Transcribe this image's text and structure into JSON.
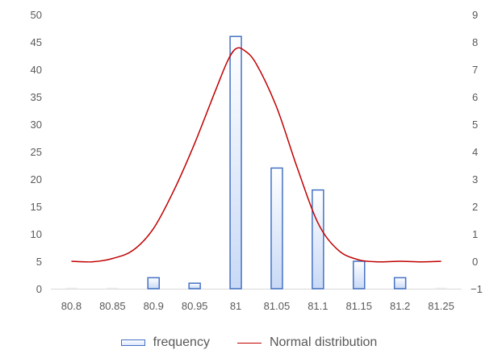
{
  "chart_data": {
    "type": "bar",
    "categories": [
      "80.8",
      "80.85",
      "80.9",
      "80.95",
      "81",
      "81.05",
      "81.1",
      "81.15",
      "81.2",
      "81.25"
    ],
    "series": [
      {
        "name": "frequency",
        "type": "bar",
        "axis": "left",
        "values": [
          0,
          0,
          2,
          1,
          46,
          22,
          18,
          5,
          2,
          0
        ]
      },
      {
        "name": "Normal distribution",
        "type": "line",
        "axis": "right",
        "x": [
          80.8,
          80.825,
          80.85,
          80.875,
          80.9,
          80.925,
          80.95,
          80.975,
          80.99,
          81.0,
          81.01,
          81.025,
          81.05,
          81.075,
          81.1,
          81.125,
          81.15,
          81.175,
          81.2,
          81.225,
          81.25
        ],
        "values": [
          0.0,
          -0.02,
          0.1,
          0.4,
          1.2,
          2.6,
          4.3,
          6.2,
          7.3,
          7.75,
          7.7,
          7.2,
          5.6,
          3.4,
          1.4,
          0.4,
          0.05,
          -0.02,
          0.0,
          -0.02,
          0.0
        ]
      }
    ],
    "y_left": {
      "ticks": [
        "0",
        "5",
        "10",
        "15",
        "20",
        "25",
        "30",
        "35",
        "40",
        "45",
        "50"
      ],
      "min": 0,
      "max": 50
    },
    "y_right": {
      "ticks": [
        "-1",
        "0",
        "1",
        "2",
        "3",
        "4",
        "5",
        "6",
        "7",
        "8",
        "9"
      ],
      "min": -1,
      "max": 9
    },
    "grid": false,
    "legend_position": "bottom",
    "colors": {
      "bar_border": "#4472c4",
      "bar_fill_top": "#ffffff",
      "bar_fill_bottom": "#c9d9f6",
      "line": "#c00000",
      "axis": "#d9d9d9",
      "text": "#595959"
    }
  },
  "legend": {
    "frequency": "frequency",
    "normal": "Normal distribution"
  }
}
